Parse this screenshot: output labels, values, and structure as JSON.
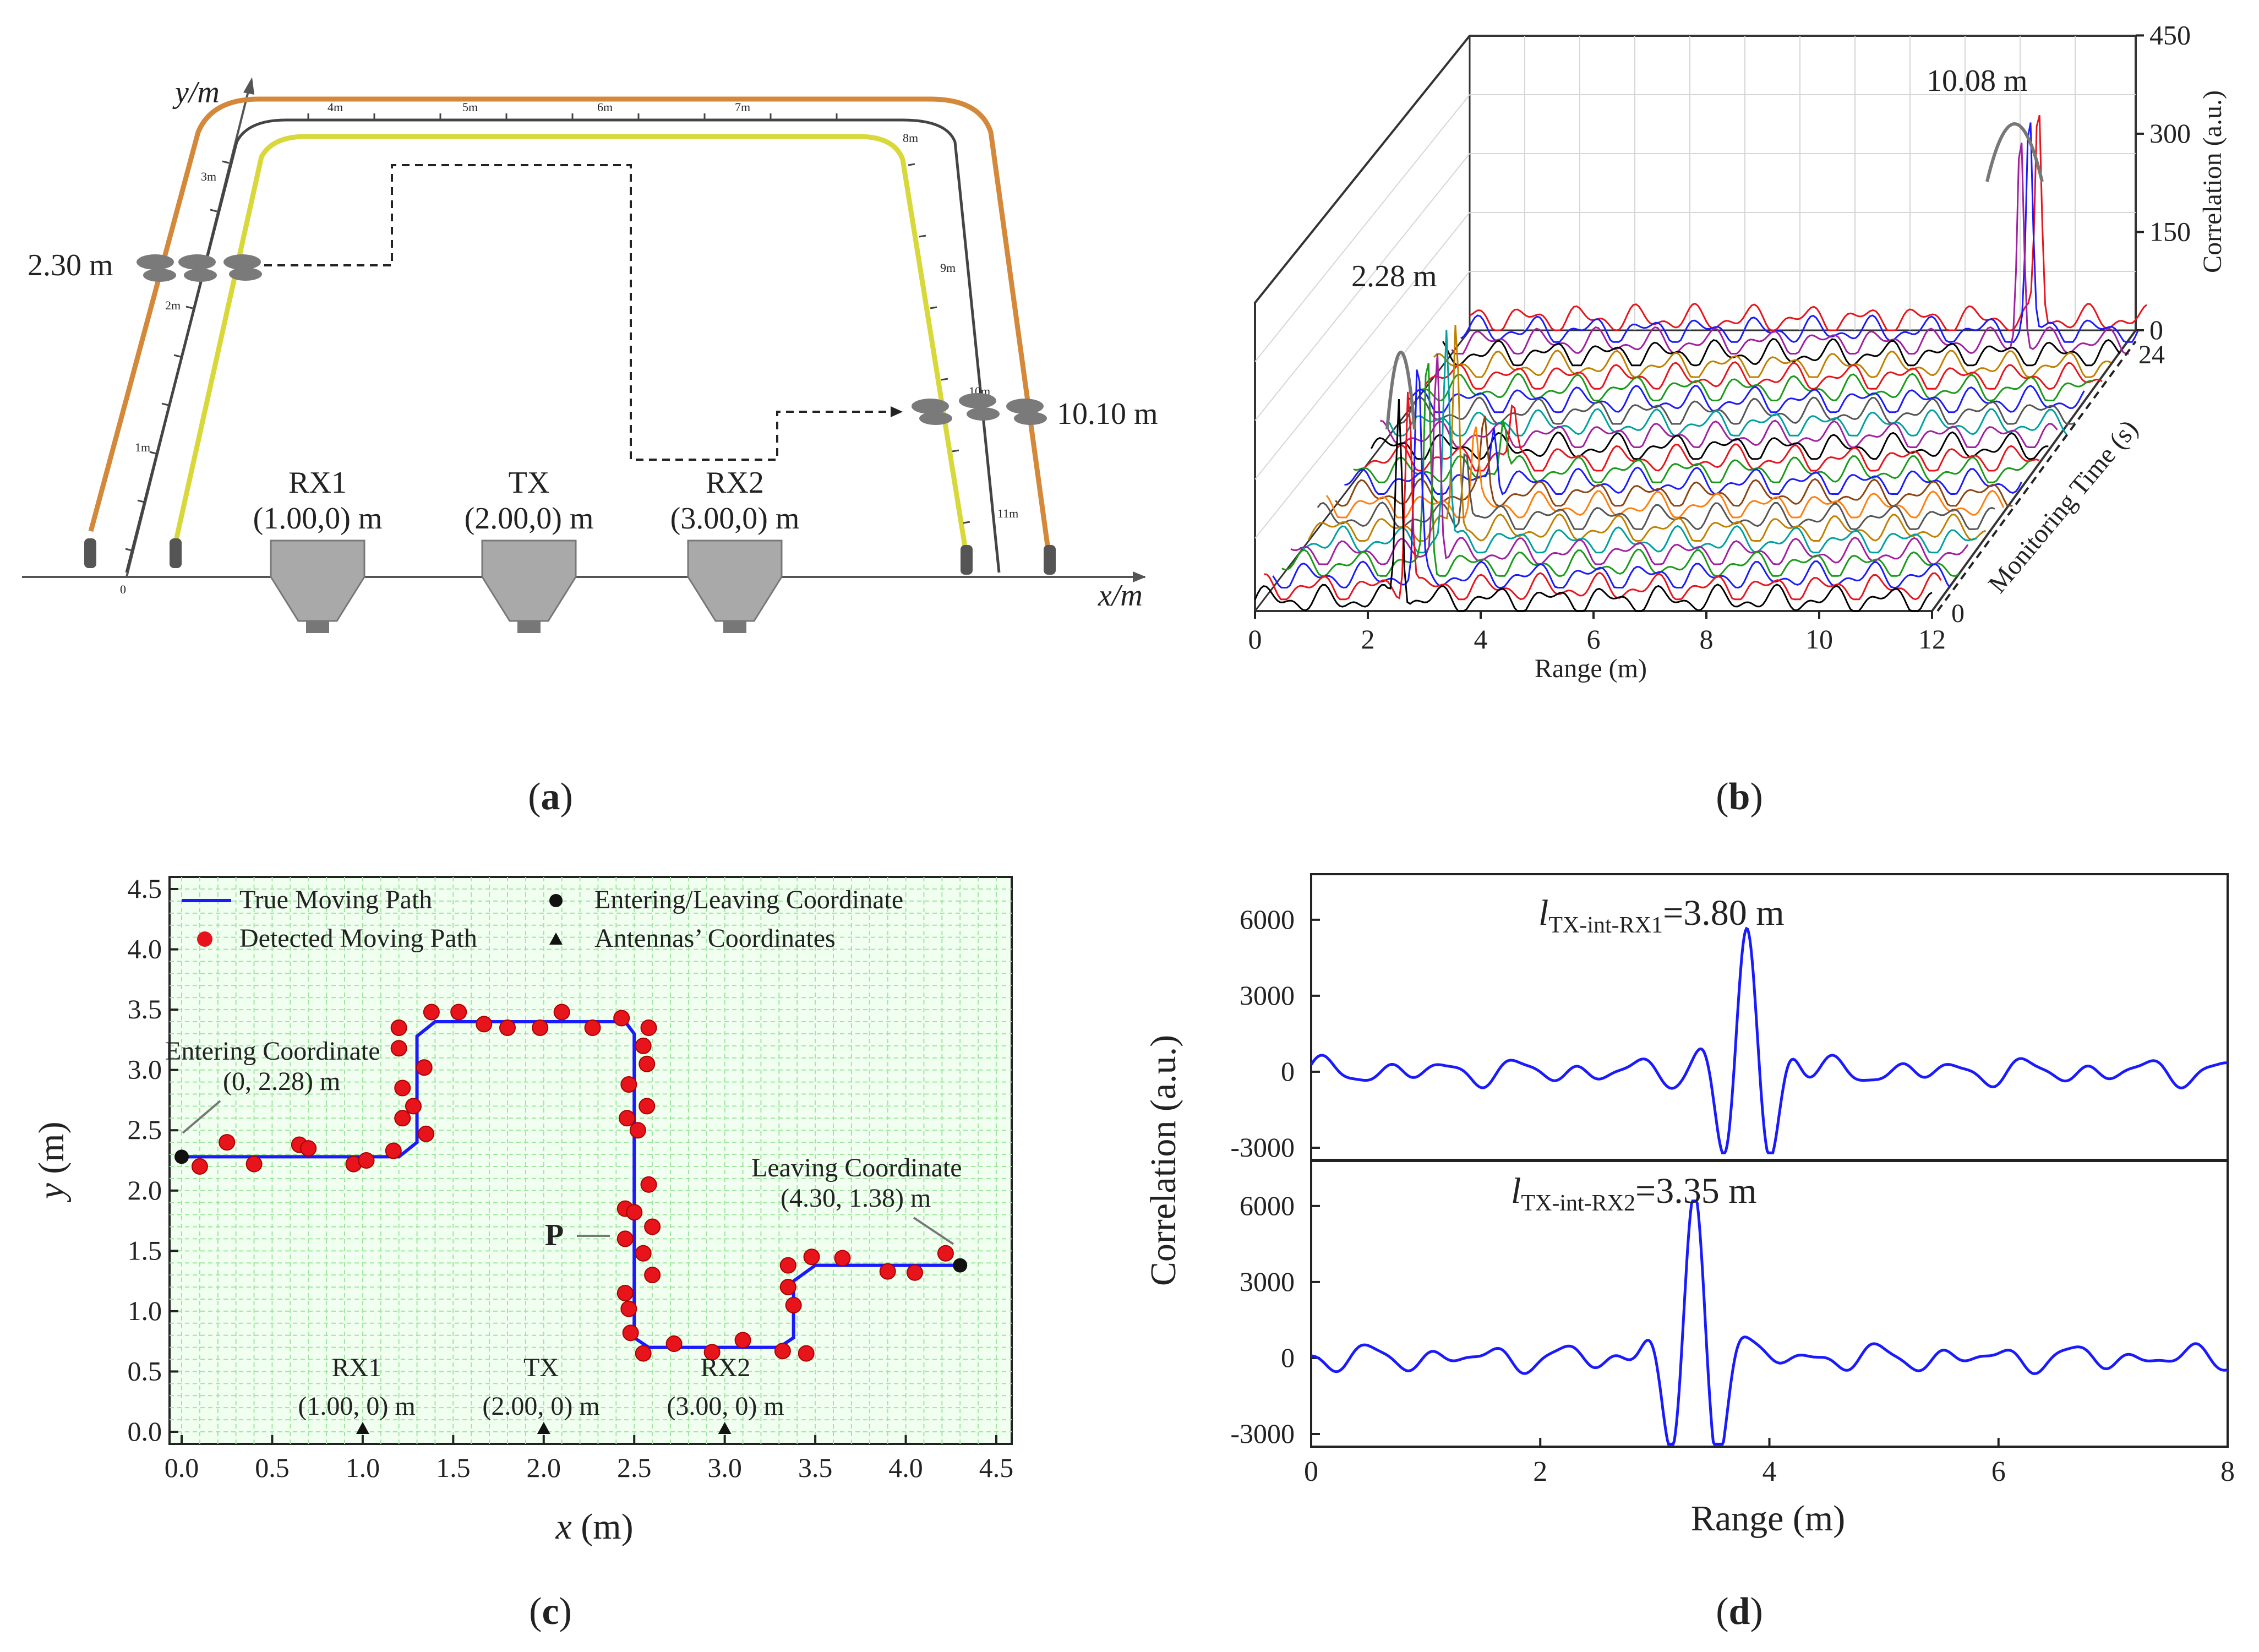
{
  "colors": {
    "blue": "#1a1aff",
    "red": "#e8141c",
    "orange": "#d4883a",
    "yellow": "#d8d83a",
    "grid": "#9ee69e",
    "gridbg": "#f0fff0"
  },
  "panel_a": {
    "subfig": "a",
    "y_axis": "y/m",
    "x_axis": "x/m",
    "origin": "0",
    "ruler_marks": [
      "1m",
      "2m",
      "3m",
      "4m",
      "5m",
      "6m",
      "7m",
      "8m",
      "9m",
      "10m",
      "11m"
    ],
    "enter_label": "2.30 m",
    "leave_label": "10.10 m",
    "antennas": [
      {
        "name": "RX1",
        "coord": "(1.00,0) m"
      },
      {
        "name": "TX",
        "coord": "(2.00,0) m"
      },
      {
        "name": "RX2",
        "coord": "(3.00,0) m"
      }
    ]
  },
  "panel_b": {
    "subfig": "b",
    "xlabel": "Range (m)",
    "ylabel": "Correlation (a.u.)",
    "tlabel": "Monitoring Time (s)",
    "peak_left": "2.28 m",
    "peak_right": "10.08 m",
    "chart_data": {
      "type": "line",
      "title": "",
      "x_ticks": [
        "0",
        "2",
        "4",
        "6",
        "8",
        "10",
        "12"
      ],
      "z_ticks": [
        "0",
        "150",
        "300",
        "450"
      ],
      "t_ticks": [
        "0",
        "24"
      ],
      "xlim": [
        0,
        12
      ],
      "zlim": [
        0,
        450
      ],
      "tlim": [
        0,
        24
      ],
      "peaks": [
        {
          "range": 2.28,
          "time": 0
        },
        {
          "range": 10.08,
          "time": 24
        }
      ]
    }
  },
  "panel_c": {
    "subfig": "c",
    "legend": {
      "true_path": "True Moving Path",
      "detected": "Detected Moving Path",
      "enter_leave": "Entering/Leaving Coordinate",
      "antennas": "Antennas’ Coordinates"
    },
    "enter_label1": "Entering Coordinate",
    "enter_label2": "(0, 2.28) m",
    "leave_label1": "Leaving Coordinate",
    "leave_label2": "(4.30, 1.38) m",
    "p_label": "P",
    "ant_names": [
      "RX1",
      "TX",
      "RX2"
    ],
    "ant_coords": [
      "(1.00, 0) m",
      "(2.00, 0) m",
      "(3.00, 0) m"
    ],
    "xlabel_var": "x",
    "xlabel_unit": "(m)",
    "ylabel_var": "y",
    "ylabel_unit": "(m)",
    "chart_data": {
      "type": "scatter",
      "xlim": [
        0,
        4.5
      ],
      "ylim": [
        0,
        4.5
      ],
      "x_ticks": [
        "0.0",
        "0.5",
        "1.0",
        "1.5",
        "2.0",
        "2.5",
        "3.0",
        "3.5",
        "4.0",
        "4.5"
      ],
      "y_ticks": [
        "0.0",
        "0.5",
        "1.0",
        "1.5",
        "2.0",
        "2.5",
        "3.0",
        "3.5",
        "4.0",
        "4.5"
      ],
      "true_path": [
        [
          0,
          2.28
        ],
        [
          1.2,
          2.28
        ],
        [
          1.3,
          2.4
        ],
        [
          1.3,
          3.28
        ],
        [
          1.4,
          3.4
        ],
        [
          2.45,
          3.4
        ],
        [
          2.5,
          3.3
        ],
        [
          2.5,
          0.78
        ],
        [
          2.58,
          0.7
        ],
        [
          3.3,
          0.7
        ],
        [
          3.38,
          0.78
        ],
        [
          3.38,
          1.25
        ],
        [
          3.5,
          1.38
        ],
        [
          4.3,
          1.38
        ]
      ],
      "detected": [
        [
          0.1,
          2.2
        ],
        [
          0.25,
          2.4
        ],
        [
          0.4,
          2.22
        ],
        [
          0.65,
          2.38
        ],
        [
          0.7,
          2.35
        ],
        [
          0.95,
          2.22
        ],
        [
          1.02,
          2.25
        ],
        [
          1.17,
          2.33
        ],
        [
          1.22,
          2.6
        ],
        [
          1.22,
          2.85
        ],
        [
          1.2,
          3.18
        ],
        [
          1.2,
          3.35
        ],
        [
          1.28,
          2.7
        ],
        [
          1.34,
          3.02
        ],
        [
          1.35,
          2.47
        ],
        [
          1.38,
          3.48
        ],
        [
          1.53,
          3.48
        ],
        [
          1.67,
          3.38
        ],
        [
          1.8,
          3.35
        ],
        [
          1.98,
          3.35
        ],
        [
          2.1,
          3.48
        ],
        [
          2.27,
          3.35
        ],
        [
          2.43,
          3.43
        ],
        [
          2.46,
          2.6
        ],
        [
          2.47,
          2.88
        ],
        [
          2.45,
          1.85
        ],
        [
          2.45,
          1.6
        ],
        [
          2.45,
          1.15
        ],
        [
          2.47,
          1.02
        ],
        [
          2.48,
          0.82
        ],
        [
          2.5,
          1.82
        ],
        [
          2.52,
          2.5
        ],
        [
          2.55,
          0.65
        ],
        [
          2.55,
          3.2
        ],
        [
          2.57,
          3.05
        ],
        [
          2.57,
          2.7
        ],
        [
          2.58,
          3.35
        ],
        [
          2.58,
          2.05
        ],
        [
          2.6,
          1.7
        ],
        [
          2.55,
          1.48
        ],
        [
          2.6,
          1.3
        ],
        [
          2.72,
          0.73
        ],
        [
          2.93,
          0.66
        ],
        [
          3.1,
          0.76
        ],
        [
          3.32,
          0.67
        ],
        [
          3.35,
          1.38
        ],
        [
          3.35,
          1.2
        ],
        [
          3.38,
          1.05
        ],
        [
          3.45,
          0.65
        ],
        [
          3.48,
          1.45
        ],
        [
          3.65,
          1.44
        ],
        [
          3.9,
          1.33
        ],
        [
          4.05,
          1.32
        ],
        [
          4.22,
          1.48
        ]
      ],
      "enter_leave": [
        [
          0,
          2.28
        ],
        [
          4.3,
          1.38
        ]
      ],
      "antennas": [
        [
          1,
          0
        ],
        [
          2,
          0
        ],
        [
          3,
          0
        ]
      ]
    }
  },
  "panel_d": {
    "subfig": "d",
    "ylabel": "Correlation (a.u.)",
    "xlabel": "Range (m)",
    "top_label_l": "l",
    "top_label_sub": "TX-int-RX1",
    "top_label_val": "=3.80 m",
    "bot_label_l": "l",
    "bot_label_sub": "TX-int-RX2",
    "bot_label_val": "=3.35 m",
    "chart_data": {
      "type": "line",
      "xlim": [
        0,
        8
      ],
      "ylim": [
        -3500,
        8000
      ],
      "x_ticks": [
        "0",
        "2",
        "4",
        "6",
        "8"
      ],
      "y_ticks": [
        "6000",
        "3000",
        "0",
        "-3000"
      ],
      "series": [
        {
          "name": "TX-int-RX1",
          "peak_x": 3.8,
          "peak_y": 5800,
          "min_y": -3200
        },
        {
          "name": "TX-int-RX2",
          "peak_x": 3.35,
          "peak_y": 6200,
          "min_y": -3400
        }
      ]
    }
  }
}
